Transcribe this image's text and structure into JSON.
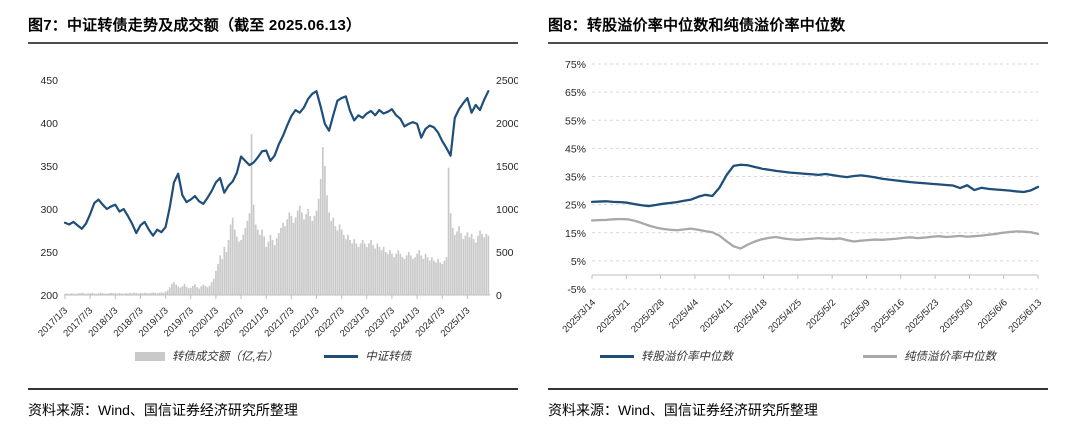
{
  "colors": {
    "navy": "#1f4e79",
    "bar_gray": "#c9c9c9",
    "line_gray": "#a8a8a8",
    "grid": "#d9d9d9",
    "axis_line": "#bfbfbf",
    "tick_text": "#262626"
  },
  "fig7": {
    "title": "图7：中证转债走势及成交额（截至 2025.06.13）",
    "source": "资料来源：Wind、国信证券经济研究所整理",
    "legend": {
      "volume": "转债成交额（亿,右）",
      "index": "中证转债"
    },
    "chart_data": {
      "type": "line+bar",
      "title": "中证转债走势及成交额",
      "left_axis": {
        "min": 200,
        "max": 450,
        "ticks": [
          450,
          400,
          350,
          300,
          250,
          200
        ]
      },
      "right_axis": {
        "min": 0,
        "max": 2500,
        "ticks": [
          2500,
          2000,
          1500,
          1000,
          500,
          0
        ]
      },
      "x_ticks": [
        "2017/1/3",
        "2017/7/3",
        "2018/1/3",
        "2018/7/3",
        "2019/1/3",
        "2019/7/3",
        "2020/1/3",
        "2020/7/3",
        "2021/1/3",
        "2021/7/3",
        "2022/1/3",
        "2022/7/3",
        "2023/1/3",
        "2023/7/3",
        "2024/1/3",
        "2024/7/3",
        "2025/1/3"
      ],
      "x_tick_interval_years": 0.5,
      "x_span_years": 8.45,
      "line_series": {
        "name": "中证转债",
        "axis": "left",
        "points_per_year": 12,
        "values": [
          284,
          282,
          285,
          281,
          277,
          283,
          294,
          307,
          311,
          305,
          300,
          303,
          305,
          297,
          300,
          292,
          283,
          272,
          281,
          285,
          276,
          269,
          276,
          273,
          279,
          302,
          331,
          341,
          316,
          308,
          311,
          315,
          309,
          306,
          313,
          321,
          331,
          336,
          319,
          327,
          332,
          342,
          361,
          356,
          351,
          354,
          360,
          367,
          368,
          356,
          362,
          375,
          385,
          397,
          408,
          415,
          412,
          418,
          428,
          434,
          437,
          419,
          399,
          391,
          409,
          426,
          429,
          431,
          414,
          403,
          409,
          406,
          411,
          414,
          409,
          415,
          411,
          413,
          416,
          409,
          405,
          396,
          399,
          401,
          399,
          383,
          393,
          397,
          395,
          389,
          379,
          371,
          362,
          406,
          416,
          423,
          429,
          412,
          421,
          415,
          427,
          437
        ]
      },
      "bar_series": {
        "name": "转债成交额（亿,右）",
        "axis": "right",
        "points_per_year": 24,
        "values": [
          14,
          18,
          12,
          20,
          16,
          13,
          18,
          22,
          26,
          20,
          15,
          18,
          21,
          25,
          17,
          14,
          20,
          27,
          22,
          17,
          15,
          21,
          25,
          22,
          20,
          17,
          24,
          19,
          15,
          22,
          18,
          26,
          20,
          28,
          22,
          17,
          24,
          20,
          26,
          22,
          18,
          25,
          29,
          24,
          20,
          26,
          30,
          26,
          40,
          55,
          90,
          130,
          150,
          120,
          100,
          85,
          100,
          130,
          95,
          80,
          85,
          105,
          125,
          90,
          75,
          100,
          120,
          105,
          90,
          110,
          150,
          190,
          280,
          360,
          460,
          420,
          560,
          500,
          640,
          820,
          900,
          760,
          680,
          620,
          640,
          700,
          780,
          860,
          950,
          1870,
          1050,
          820,
          760,
          700,
          760,
          680,
          560,
          620,
          700,
          640,
          580,
          660,
          720,
          780,
          840,
          800,
          880,
          960,
          920,
          840,
          900,
          980,
          1040,
          960,
          880,
          940,
          1000,
          920,
          860,
          920,
          980,
          1120,
          1350,
          1720,
          1500,
          1160,
          960,
          860,
          900,
          800,
          750,
          820,
          760,
          700,
          650,
          700,
          640,
          600,
          650,
          600,
          560,
          600,
          640,
          600,
          560,
          600,
          640,
          580,
          540,
          600,
          560,
          520,
          560,
          500,
          480,
          520,
          480,
          440,
          480,
          520,
          480,
          440,
          420,
          460,
          500,
          460,
          420,
          440,
          480,
          520,
          460,
          420,
          480,
          440,
          400,
          440,
          400,
          380,
          420,
          380,
          360,
          400,
          440,
          1480,
          950,
          780,
          700,
          740,
          800,
          720,
          650,
          690,
          730,
          670,
          710,
          650,
          610,
          690,
          750,
          710,
          670,
          710,
          690
        ]
      }
    }
  },
  "fig8": {
    "title": "图8：转股溢价率中位数和纯债溢价率中位数",
    "source": "资料来源：Wind、国信证券经济研究所整理",
    "legend": {
      "conversion": "转股溢价率中位数",
      "pure_bond": "纯债溢价率中位数"
    },
    "chart_data": {
      "type": "line",
      "title": "转股溢价率中位数和纯债溢价率中位数",
      "y_axis": {
        "min": -5,
        "max": 75,
        "grid_values": [
          75,
          65,
          55,
          45,
          35,
          25,
          15,
          5,
          -5
        ],
        "tick_labels": [
          "75%",
          "65%",
          "55%",
          "45%",
          "35%",
          "25%",
          "15%",
          "5%",
          "-5%"
        ],
        "baseline": 0
      },
      "x_ticks": [
        "2025/3/14",
        "2025/3/21",
        "2025/3/28",
        "2025/4/4",
        "2025/4/11",
        "2025/4/18",
        "2025/4/25",
        "2025/5/2",
        "2025/5/9",
        "2025/5/16",
        "2025/5/23",
        "2025/5/30",
        "2025/6/6",
        "2025/6/13"
      ],
      "series": [
        {
          "name": "转股溢价率中位数",
          "color_key": "navy",
          "values": [
            26.0,
            26.1,
            26.2,
            26.0,
            25.9,
            25.7,
            25.2,
            24.8,
            24.5,
            24.9,
            25.3,
            25.6,
            25.9,
            26.4,
            26.8,
            27.8,
            28.5,
            28.1,
            31.0,
            35.5,
            38.8,
            39.2,
            39.0,
            38.4,
            37.8,
            37.4,
            37.0,
            36.7,
            36.4,
            36.2,
            36.0,
            35.8,
            35.6,
            35.9,
            35.5,
            35.1,
            34.8,
            35.2,
            35.4,
            35.1,
            34.7,
            34.2,
            33.9,
            33.6,
            33.3,
            33.0,
            32.8,
            32.6,
            32.4,
            32.2,
            32.0,
            31.8,
            30.9,
            31.9,
            30.2,
            31.0,
            30.6,
            30.4,
            30.2,
            30.0,
            29.7,
            29.5,
            30.1,
            31.3
          ]
        },
        {
          "name": "纯债溢价率中位数",
          "color_key": "line_gray",
          "values": [
            19.4,
            19.5,
            19.6,
            19.8,
            19.9,
            19.8,
            19.3,
            18.5,
            17.6,
            16.9,
            16.4,
            16.1,
            15.9,
            16.2,
            16.5,
            16.1,
            15.6,
            15.2,
            14.0,
            12.0,
            10.2,
            9.4,
            10.8,
            11.9,
            12.7,
            13.2,
            13.5,
            13.0,
            12.7,
            12.5,
            12.7,
            12.9,
            13.1,
            12.9,
            12.8,
            13.0,
            12.4,
            11.9,
            12.2,
            12.4,
            12.6,
            12.5,
            12.7,
            12.9,
            13.2,
            13.4,
            13.1,
            13.3,
            13.6,
            13.8,
            13.5,
            13.7,
            13.9,
            13.6,
            13.8,
            14.0,
            14.3,
            14.6,
            15.0,
            15.3,
            15.5,
            15.4,
            15.2,
            14.6
          ]
        }
      ]
    }
  }
}
